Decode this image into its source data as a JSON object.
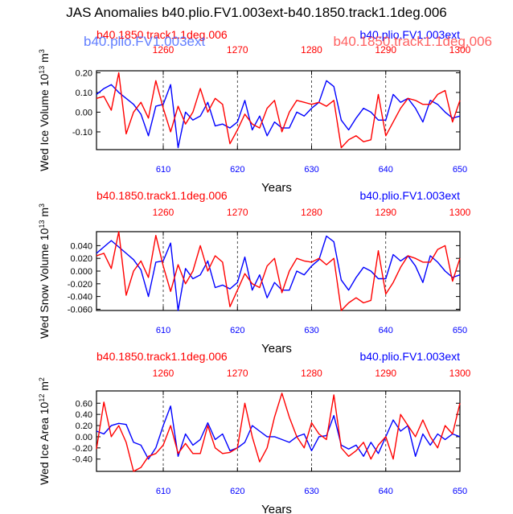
{
  "title": "JAS Anomalies b40.plio.FV1.003ext-b40.1850.track1.1deg.006",
  "colors": {
    "red": "#ff0000",
    "blue": "#0000ff",
    "grid": "#000000"
  },
  "chart_data": [
    {
      "type": "line",
      "ylabel_main": "Wed Ice Volume 10",
      "ylabel_exp": "13",
      "ylabel_unit": " m",
      "ylabel_unit_exp": "3",
      "xlabel": "Years",
      "legend_red": "b40.1850.track1.1deg.006",
      "legend_blue": "b40.plio.FV1.003ext",
      "overlap_red": "b40.1850.track1.1deg.006",
      "overlap_blue": "b40.plio.FV1.003ext",
      "xlim": [
        601,
        650
      ],
      "ylim": [
        -0.19,
        0.21
      ],
      "yticks": [
        -0.1,
        0.0,
        0.1,
        0.2
      ],
      "ytick_labels": [
        "-0.10",
        "0.00",
        "0.10",
        "0.20"
      ],
      "bottom_ticks": [
        610,
        620,
        630,
        640,
        650
      ],
      "top_ticks": [
        1260,
        1270,
        1280,
        1290,
        1300
      ],
      "top_offset": 650,
      "series": [
        {
          "name": "b40.plio.FV1.003ext",
          "color": "blue",
          "x_start": 601,
          "values": [
            0.09,
            0.12,
            0.14,
            0.1,
            0.07,
            0.04,
            -0.01,
            -0.12,
            0.03,
            0.04,
            0.14,
            -0.18,
            0.0,
            -0.04,
            -0.02,
            0.05,
            -0.07,
            -0.06,
            -0.08,
            -0.05,
            0.06,
            -0.09,
            -0.02,
            -0.12,
            -0.05,
            -0.08,
            -0.08,
            0.0,
            -0.02,
            0.02,
            0.05,
            0.16,
            0.13,
            -0.04,
            -0.09,
            -0.03,
            0.02,
            0.0,
            -0.04,
            -0.04,
            0.09,
            0.05,
            0.07,
            0.02,
            -0.05,
            0.06,
            0.04,
            0.0,
            -0.03,
            -0.02
          ]
        },
        {
          "name": "b40.1850.track1.1deg.006",
          "color": "red",
          "x_start": 601,
          "values": [
            0.07,
            0.08,
            0.01,
            0.2,
            -0.11,
            0.0,
            0.05,
            -0.03,
            0.16,
            0.02,
            -0.1,
            0.03,
            -0.06,
            0.0,
            0.12,
            0.0,
            0.07,
            0.04,
            -0.16,
            -0.09,
            -0.01,
            -0.06,
            -0.08,
            0.02,
            0.06,
            -0.1,
            0.0,
            0.06,
            0.05,
            0.04,
            0.05,
            0.03,
            0.06,
            -0.18,
            -0.14,
            -0.12,
            -0.15,
            -0.14,
            0.09,
            -0.12,
            -0.05,
            0.02,
            0.07,
            0.06,
            0.04,
            0.04,
            0.09,
            0.11,
            -0.05,
            0.06
          ]
        }
      ]
    },
    {
      "type": "line",
      "ylabel_main": "Wed Snow Volume 10",
      "ylabel_exp": "13",
      "ylabel_unit": " m",
      "ylabel_unit_exp": "3",
      "xlabel": "Years",
      "legend_red": "b40.1850.track1.1deg.006",
      "legend_blue": "b40.plio.FV1.003ext",
      "xlim": [
        601,
        650
      ],
      "ylim": [
        -0.062,
        0.062
      ],
      "yticks": [
        -0.06,
        -0.04,
        -0.02,
        0.0,
        0.02,
        0.04
      ],
      "ytick_labels": [
        "-0.060",
        "-0.040",
        "-0.020",
        "0.000",
        "0.020",
        "0.040"
      ],
      "bottom_ticks": [
        610,
        620,
        630,
        640,
        650
      ],
      "top_ticks": [
        1260,
        1270,
        1280,
        1290,
        1300
      ],
      "top_offset": 650,
      "series": [
        {
          "name": "b40.plio.FV1.003ext",
          "color": "blue",
          "x_start": 601,
          "values": [
            0.028,
            0.038,
            0.048,
            0.038,
            0.028,
            0.018,
            0.002,
            -0.04,
            0.014,
            0.016,
            0.044,
            -0.062,
            0.004,
            -0.012,
            -0.006,
            0.016,
            -0.026,
            -0.022,
            -0.028,
            -0.018,
            0.022,
            -0.03,
            -0.006,
            -0.042,
            -0.018,
            -0.03,
            -0.03,
            0.0,
            -0.006,
            0.008,
            0.018,
            0.055,
            0.046,
            -0.014,
            -0.03,
            -0.01,
            0.006,
            0.0,
            -0.012,
            -0.012,
            0.026,
            0.016,
            0.024,
            0.008,
            -0.018,
            0.024,
            0.014,
            0.0,
            -0.01,
            -0.006
          ]
        },
        {
          "name": "b40.1850.track1.1deg.006",
          "color": "red",
          "x_start": 601,
          "values": [
            0.024,
            0.028,
            0.004,
            0.062,
            -0.038,
            0.0,
            0.016,
            -0.01,
            0.056,
            0.008,
            -0.032,
            0.01,
            -0.02,
            0.0,
            0.04,
            0.0,
            0.024,
            0.014,
            -0.056,
            -0.03,
            -0.004,
            -0.02,
            -0.026,
            0.008,
            0.02,
            -0.034,
            0.0,
            0.02,
            0.016,
            0.014,
            0.02,
            0.01,
            0.02,
            -0.062,
            -0.05,
            -0.042,
            -0.05,
            -0.046,
            0.032,
            -0.036,
            -0.018,
            0.006,
            0.024,
            0.02,
            0.014,
            0.014,
            0.034,
            0.04,
            -0.016,
            0.02
          ]
        }
      ]
    },
    {
      "type": "line",
      "ylabel_main": "Wed Ice Area 10",
      "ylabel_exp": "12",
      "ylabel_unit": " m",
      "ylabel_unit_exp": "2",
      "xlabel": "Years",
      "legend_red": "b40.1850.track1.1deg.006",
      "legend_blue": "b40.plio.FV1.003ext",
      "xlim": [
        601,
        650
      ],
      "ylim": [
        -0.62,
        0.82
      ],
      "yticks": [
        -0.4,
        -0.2,
        0.0,
        0.2,
        0.4,
        0.6
      ],
      "ytick_labels": [
        "-0.40",
        "-0.20",
        "0.00",
        "0.20",
        "0.40",
        "0.60"
      ],
      "bottom_ticks": [
        610,
        620,
        630,
        640,
        650
      ],
      "top_ticks": [
        1260,
        1270,
        1280,
        1290,
        1300
      ],
      "top_offset": 650,
      "series": [
        {
          "name": "b40.plio.FV1.003ext",
          "color": "blue",
          "x_start": 601,
          "values": [
            0.1,
            0.05,
            0.2,
            0.24,
            0.22,
            -0.1,
            -0.15,
            -0.4,
            -0.2,
            0.2,
            0.55,
            -0.35,
            0.05,
            -0.15,
            -0.05,
            0.25,
            -0.05,
            0.05,
            -0.25,
            -0.2,
            -0.1,
            0.2,
            0.1,
            0.0,
            0.0,
            -0.05,
            -0.1,
            0.0,
            0.05,
            -0.25,
            0.0,
            0.02,
            0.38,
            -0.15,
            -0.22,
            -0.15,
            -0.35,
            -0.1,
            -0.3,
            0.0,
            0.3,
            0.1,
            0.2,
            -0.35,
            0.05,
            -0.15,
            0.05,
            -0.05,
            0.05,
            0.0
          ]
        },
        {
          "name": "b40.1850.track1.1deg.006",
          "color": "red",
          "x_start": 601,
          "values": [
            -0.22,
            0.62,
            0.0,
            0.2,
            -0.1,
            -0.62,
            -0.55,
            -0.35,
            -0.3,
            -0.15,
            0.2,
            -0.3,
            -0.12,
            -0.3,
            -0.3,
            0.2,
            -0.2,
            -0.3,
            -0.28,
            -0.2,
            0.6,
            0.0,
            -0.45,
            -0.2,
            0.35,
            0.78,
            0.35,
            0.0,
            -0.2,
            0.25,
            0.05,
            -0.05,
            0.75,
            -0.2,
            -0.35,
            -0.25,
            -0.1,
            -0.4,
            -0.15,
            0.0,
            -0.4,
            0.4,
            0.2,
            0.0,
            0.3,
            0.0,
            -0.2,
            0.2,
            0.05,
            0.6
          ]
        }
      ]
    }
  ]
}
